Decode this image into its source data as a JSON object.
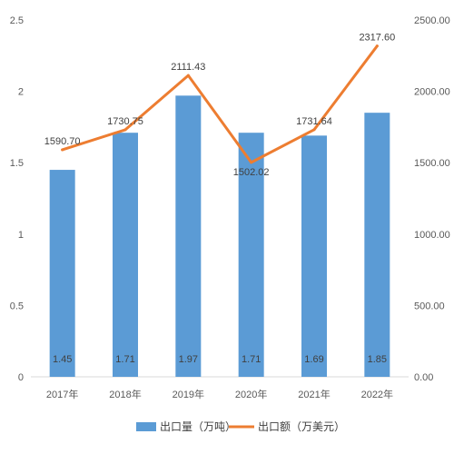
{
  "chart_data": {
    "type": "bar",
    "categories": [
      "2017年",
      "2018年",
      "2019年",
      "2020年",
      "2021年",
      "2022年"
    ],
    "series": [
      {
        "name": "出口量（万吨）",
        "type": "bar",
        "axis": "left",
        "color": "#5b9bd5",
        "values": [
          1.45,
          1.71,
          1.97,
          1.71,
          1.69,
          1.85
        ],
        "labels": [
          "1.45",
          "1.71",
          "1.97",
          "1.71",
          "1.69",
          "1.85"
        ]
      },
      {
        "name": "出口额（万美元）",
        "type": "line",
        "axis": "right",
        "color": "#ed7d31",
        "values": [
          1590.7,
          1730.75,
          2111.43,
          1502.02,
          1731.64,
          2317.6
        ],
        "labels": [
          "1590.70",
          "1730.75",
          "2111.43",
          "1502.02",
          "1731.64",
          "2317.60"
        ]
      }
    ],
    "y_left": {
      "ylim": [
        0,
        2.5
      ],
      "ticks": [
        "0",
        "0.5",
        "1",
        "1.5",
        "2",
        "2.5"
      ]
    },
    "y_right": {
      "ylim": [
        0,
        2500
      ],
      "ticks": [
        "0.00",
        "500.00",
        "1000.00",
        "1500.00",
        "2000.00",
        "2500.00"
      ]
    },
    "grid": false,
    "legend_position": "bottom"
  }
}
